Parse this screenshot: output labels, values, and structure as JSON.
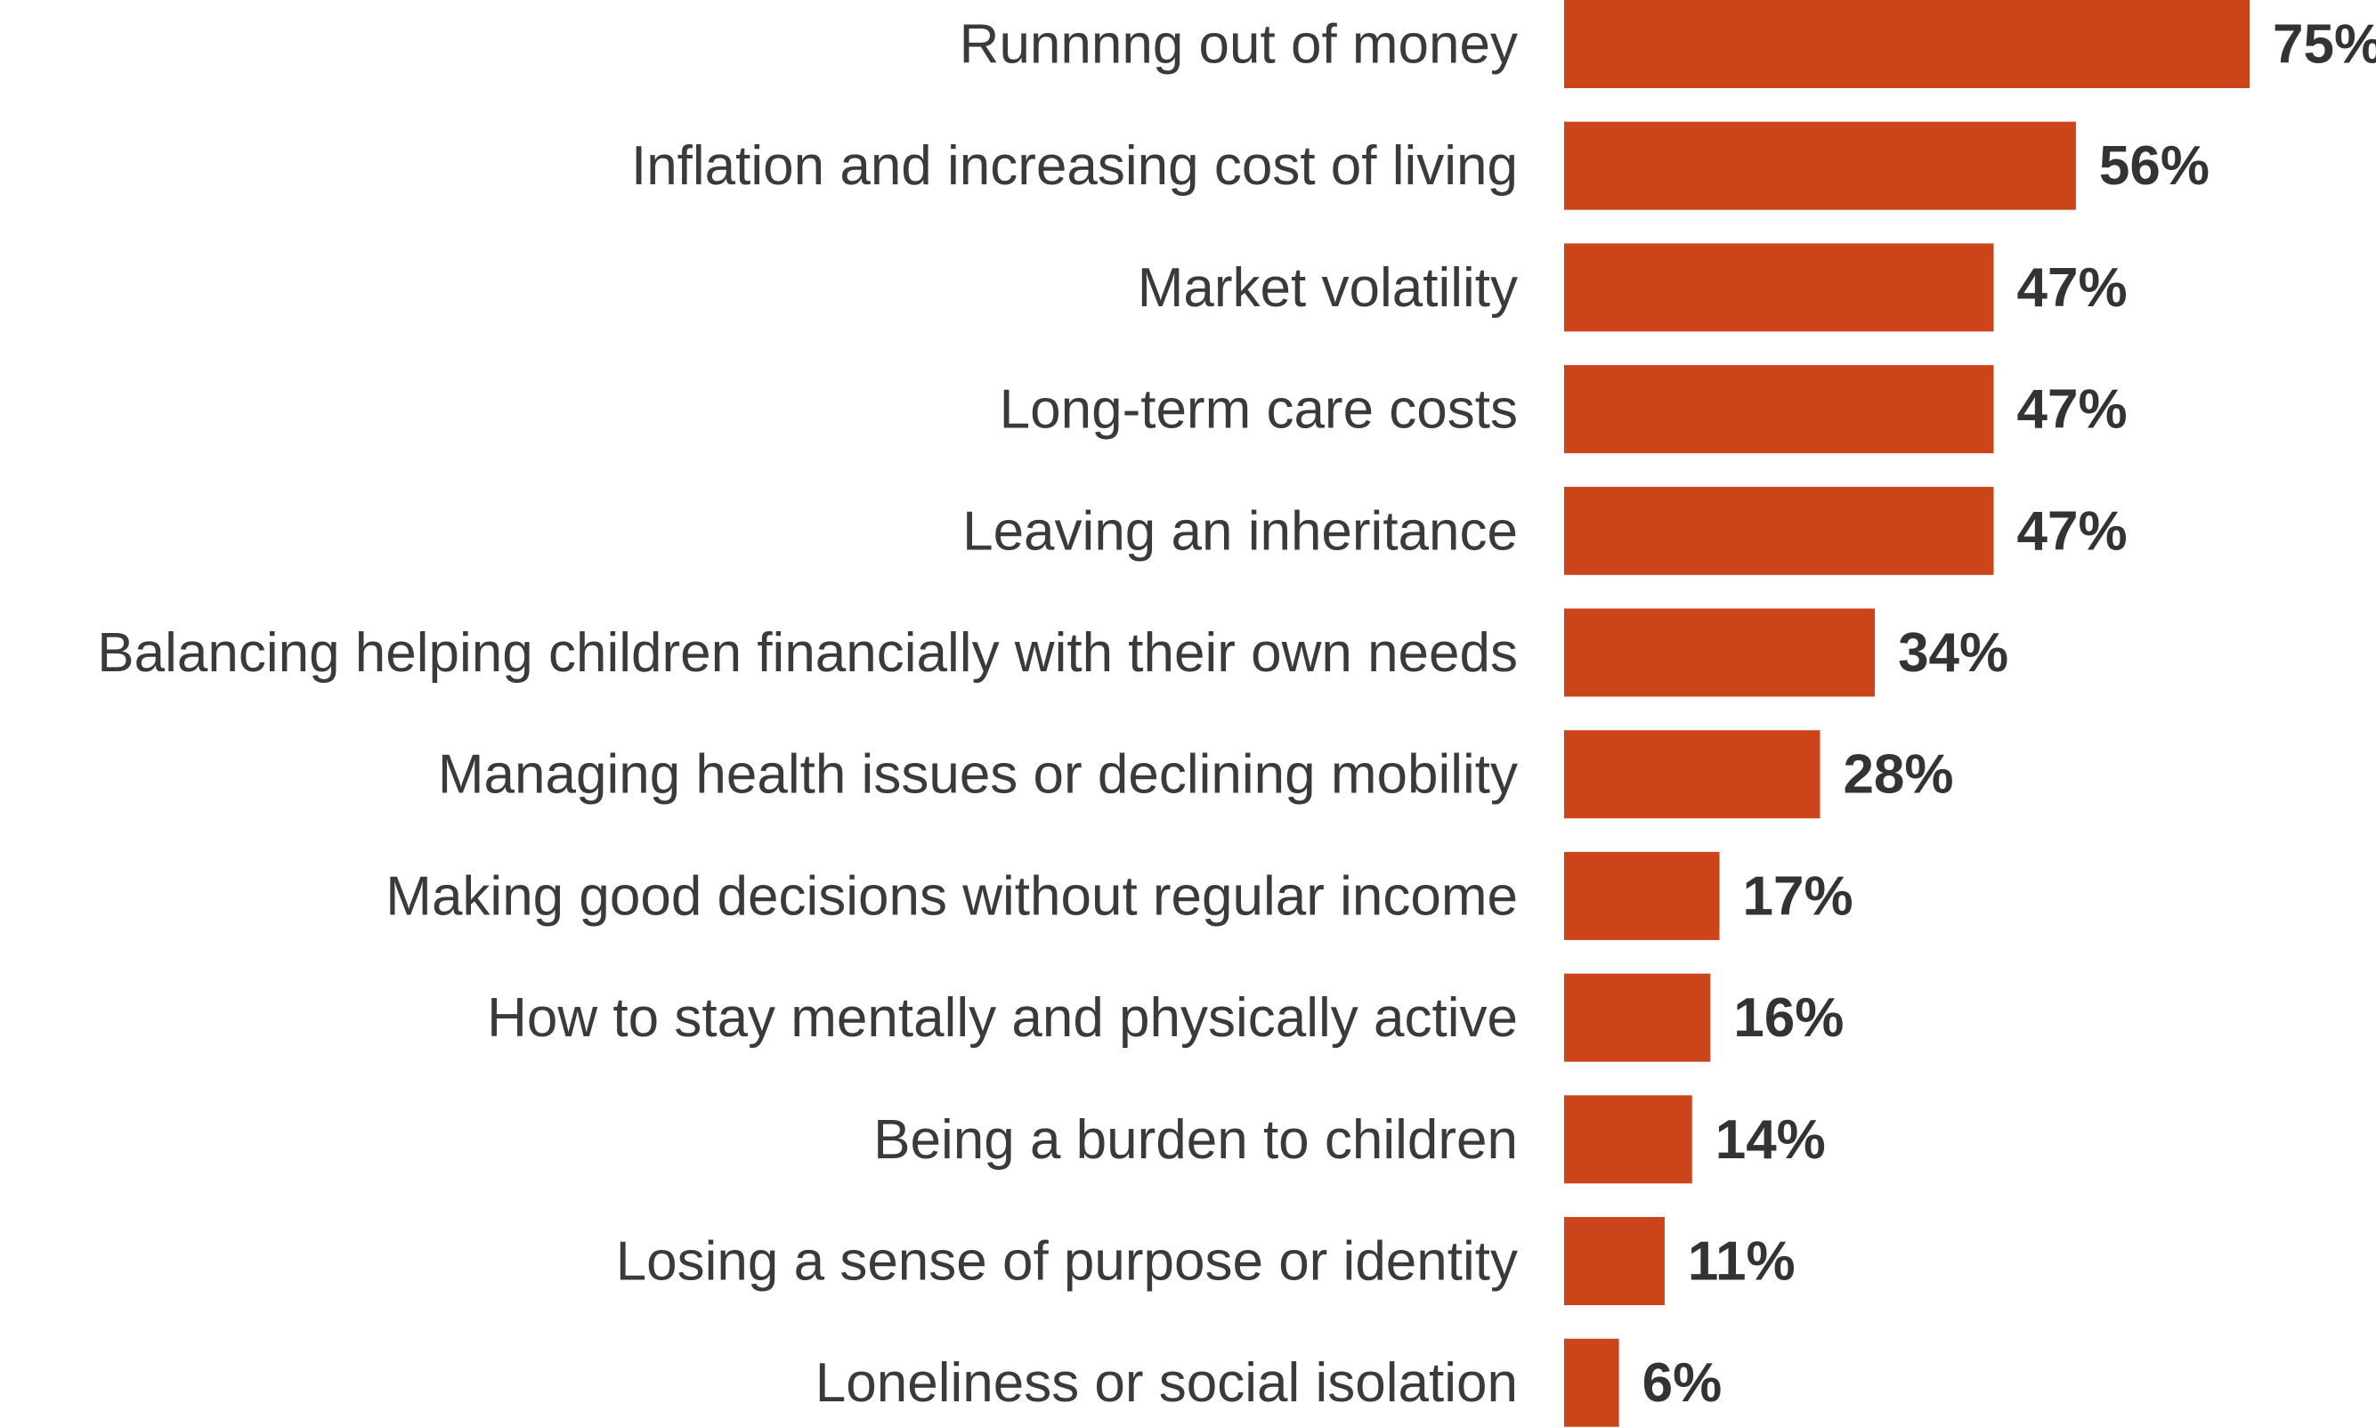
{
  "chart_data": {
    "type": "bar",
    "orientation": "horizontal",
    "title": "",
    "xlabel": "",
    "ylabel": "",
    "grid": false,
    "legend": "none",
    "bar_color": "#cc4419",
    "value_suffix": "%",
    "xlim": [
      0,
      75
    ],
    "categories": [
      "Runnnng out of money",
      "Inflation and increasing cost of living",
      "Market volatility",
      "Long-term care costs",
      "Leaving an inheritance",
      "Balancing helping children financially with their own needs",
      "Managing health issues or declining mobility",
      "Making good decisions without regular income",
      "How to stay mentally and physically active",
      "Being a burden to children",
      "Losing a sense of purpose or identity",
      "Loneliness or social isolation"
    ],
    "values": [
      75,
      56,
      47,
      47,
      47,
      34,
      28,
      17,
      16,
      14,
      11,
      6
    ],
    "data_labels": [
      "75%",
      "56%",
      "47%",
      "47%",
      "47%",
      "34%",
      "28%",
      "17%",
      "16%",
      "14%",
      "11%",
      "6%"
    ]
  }
}
